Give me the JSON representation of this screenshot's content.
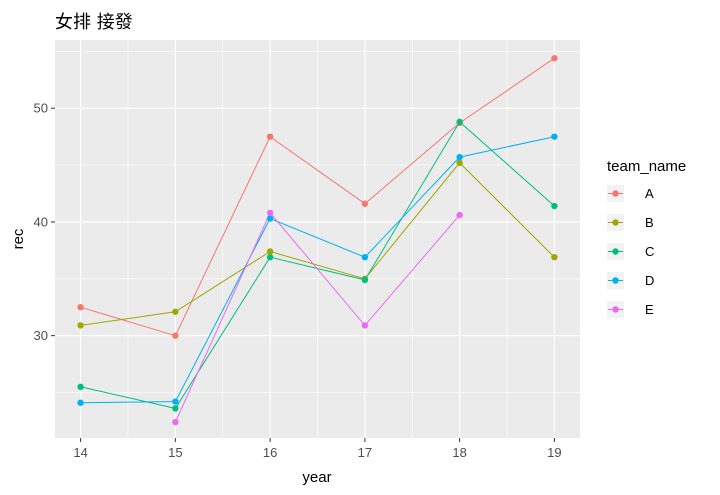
{
  "chart_data": {
    "type": "line",
    "title": "女排 接發",
    "xlabel": "year",
    "ylabel": "rec",
    "x": [
      14,
      15,
      16,
      17,
      18,
      19
    ],
    "x_tick_labels": [
      "14",
      "15",
      "16",
      "17",
      "18",
      "19"
    ],
    "xlim": [
      13.73,
      19.27
    ],
    "ylim": [
      21.0,
      56.0
    ],
    "y_ticks": [
      30,
      40,
      50
    ],
    "y_tick_labels": [
      "30",
      "40",
      "50"
    ],
    "grid": true,
    "legend_position": "right",
    "legend_title": "team_name",
    "series": [
      {
        "name": "A",
        "color": "#F8766D",
        "x": [
          14,
          15,
          16,
          17,
          18,
          19
        ],
        "values": [
          32.5,
          30.0,
          47.5,
          41.6,
          48.7,
          54.4
        ]
      },
      {
        "name": "B",
        "color": "#A3A500",
        "x": [
          14,
          15,
          16,
          17,
          18,
          19
        ],
        "values": [
          30.9,
          32.1,
          37.4,
          35.0,
          45.2,
          36.9
        ]
      },
      {
        "name": "C",
        "color": "#00BF7D",
        "x": [
          14,
          15,
          16,
          17,
          18,
          19
        ],
        "values": [
          25.5,
          23.6,
          36.9,
          34.9,
          48.8,
          41.4
        ]
      },
      {
        "name": "D",
        "color": "#00B0F6",
        "x": [
          14,
          15,
          16,
          17,
          18,
          19
        ],
        "values": [
          24.1,
          24.2,
          40.3,
          36.9,
          45.7,
          47.5
        ]
      },
      {
        "name": "E",
        "color": "#E76BF3",
        "x": [
          15,
          16,
          17,
          18
        ],
        "values": [
          22.4,
          40.8,
          30.9,
          40.6
        ]
      }
    ]
  }
}
